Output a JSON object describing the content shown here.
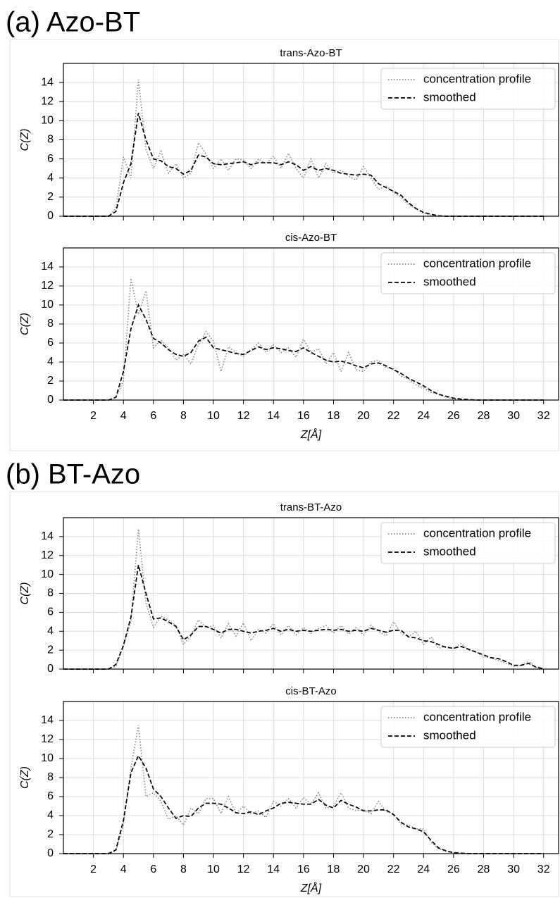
{
  "sections": [
    "(a) Azo-BT",
    "(b) BT-Azo"
  ],
  "chart_data": [
    {
      "type": "line",
      "title": "trans-Azo-BT",
      "ylabel": "C(Z)",
      "show_xtick_labels": false,
      "grid": true,
      "legend": "upper right",
      "xlim": [
        0,
        33
      ],
      "ylim": [
        0,
        16
      ],
      "xticks": [
        2,
        4,
        6,
        8,
        10,
        12,
        14,
        16,
        18,
        20,
        22,
        24,
        26,
        28,
        30,
        32
      ],
      "yticks": [
        0,
        2,
        4,
        6,
        8,
        10,
        12,
        14
      ],
      "x": [
        0,
        0.5,
        1,
        1.5,
        2,
        2.5,
        3,
        3.5,
        4,
        4.5,
        5,
        5.5,
        6,
        6.5,
        7,
        7.5,
        8,
        8.5,
        9,
        9.5,
        10,
        10.5,
        11,
        11.5,
        12,
        12.5,
        13,
        13.5,
        14,
        14.5,
        15,
        15.5,
        16,
        16.5,
        17,
        17.5,
        18,
        18.5,
        19,
        19.5,
        20,
        20.5,
        21,
        21.5,
        22,
        22.5,
        23,
        23.5,
        24,
        24.5,
        25,
        25.5,
        26,
        26.5,
        27,
        27.5,
        28,
        28.5,
        29,
        29.5,
        30,
        30.5,
        31,
        31.5,
        32
      ],
      "series": [
        {
          "name": "concentration profile",
          "color": "#888888",
          "dash": "dotted",
          "values": [
            0,
            0,
            0,
            0,
            0,
            0,
            0,
            0.8,
            6.2,
            4,
            14.3,
            7,
            5,
            6.8,
            4.5,
            5.5,
            4,
            4.5,
            7.7,
            6.5,
            5,
            6,
            4.8,
            6,
            5.9,
            5,
            6,
            5.5,
            6.3,
            5,
            6.6,
            5,
            4,
            6,
            4,
            5.5,
            4.5,
            4.8,
            4.2,
            3.8,
            5.2,
            4,
            2.8,
            3.2,
            2.5,
            2,
            1.2,
            0.8,
            0.3,
            0.1,
            0,
            0,
            0,
            0,
            0,
            0,
            0,
            0,
            0,
            0,
            0,
            0,
            0,
            0,
            0
          ]
        },
        {
          "name": "smoothed",
          "color": "#000000",
          "dash": "dashed",
          "values": [
            0,
            0,
            0,
            0,
            0,
            0,
            0,
            0.5,
            3.5,
            5.5,
            10.8,
            8,
            6,
            5.8,
            5.2,
            5,
            4.4,
            4.8,
            6.4,
            6.2,
            5.5,
            5.4,
            5.5,
            5.6,
            5.7,
            5.4,
            5.6,
            5.6,
            5.6,
            5.4,
            5.7,
            5.4,
            4.8,
            5.2,
            4.8,
            5,
            4.8,
            4.5,
            4.4,
            4.3,
            4.4,
            4.3,
            3.4,
            3,
            2.6,
            2.2,
            1.4,
            0.8,
            0.4,
            0.2,
            0.05,
            0,
            0,
            0,
            0,
            0,
            0,
            0,
            0,
            0,
            0,
            0,
            0,
            0,
            0
          ]
        }
      ]
    },
    {
      "type": "line",
      "title": "cis-Azo-BT",
      "xlabel": "Z[Å]",
      "ylabel": "C(Z)",
      "show_xtick_labels": true,
      "grid": true,
      "legend": "upper right",
      "xlim": [
        0,
        33
      ],
      "ylim": [
        0,
        16
      ],
      "xticks": [
        2,
        4,
        6,
        8,
        10,
        12,
        14,
        16,
        18,
        20,
        22,
        24,
        26,
        28,
        30,
        32
      ],
      "yticks": [
        0,
        2,
        4,
        6,
        8,
        10,
        12,
        14
      ],
      "x": [
        0,
        0.5,
        1,
        1.5,
        2,
        2.5,
        3,
        3.5,
        4,
        4.5,
        5,
        5.5,
        6,
        6.5,
        7,
        7.5,
        8,
        8.5,
        9,
        9.5,
        10,
        10.5,
        11,
        11.5,
        12,
        12.5,
        13,
        13.5,
        14,
        14.5,
        15,
        15.5,
        16,
        16.5,
        17,
        17.5,
        18,
        18.5,
        19,
        19.5,
        20,
        20.5,
        21,
        21.5,
        22,
        22.5,
        23,
        23.5,
        24,
        24.5,
        25,
        25.5,
        26,
        26.5,
        27,
        27.5,
        28,
        28.5,
        29,
        29.5,
        30,
        30.5,
        31,
        31.5,
        32
      ],
      "series": [
        {
          "name": "concentration profile",
          "color": "#888888",
          "dash": "dotted",
          "values": [
            0,
            0,
            0,
            0,
            0,
            0,
            0,
            0.3,
            2,
            12.8,
            9,
            11.5,
            5.5,
            6.3,
            5.5,
            4.2,
            4.8,
            3.8,
            5.8,
            7.2,
            6.2,
            3,
            5.6,
            5,
            4.6,
            5.3,
            6,
            5,
            5.8,
            5,
            5.5,
            4.5,
            6.4,
            5,
            5.4,
            3.8,
            5,
            3,
            5,
            3.2,
            3,
            4,
            4.2,
            3.4,
            3.3,
            2.5,
            2.2,
            1.6,
            1.3,
            0.8,
            0.6,
            0.3,
            0.1,
            0,
            0,
            0,
            0,
            0,
            0,
            0,
            0,
            0,
            0,
            0,
            0
          ]
        },
        {
          "name": "smoothed",
          "color": "#000000",
          "dash": "dashed",
          "values": [
            0,
            0,
            0,
            0,
            0,
            0,
            0,
            0.3,
            3,
            7.5,
            10,
            8.5,
            6.5,
            6,
            5.3,
            4.8,
            4.6,
            5,
            6.2,
            6.6,
            5.5,
            5.3,
            5.1,
            4.9,
            4.8,
            5.2,
            5.6,
            5.3,
            5.5,
            5.4,
            5.2,
            5.1,
            5.5,
            5,
            4.6,
            4.2,
            4,
            4.1,
            3.9,
            3.6,
            3.4,
            3.8,
            3.9,
            3.6,
            3.2,
            2.8,
            2.3,
            1.9,
            1.5,
            1,
            0.6,
            0.4,
            0.2,
            0.1,
            0.05,
            0,
            0,
            0,
            0,
            0,
            0,
            0,
            0,
            0,
            0
          ]
        }
      ]
    },
    {
      "type": "line",
      "title": "trans-BT-Azo",
      "ylabel": "C(Z)",
      "show_xtick_labels": false,
      "grid": true,
      "legend": "upper right",
      "xlim": [
        0,
        33
      ],
      "ylim": [
        0,
        16
      ],
      "xticks": [
        2,
        4,
        6,
        8,
        10,
        12,
        14,
        16,
        18,
        20,
        22,
        24,
        26,
        28,
        30,
        32
      ],
      "yticks": [
        0,
        2,
        4,
        6,
        8,
        10,
        12,
        14
      ],
      "x": [
        0,
        0.5,
        1,
        1.5,
        2,
        2.5,
        3,
        3.5,
        4,
        4.5,
        5,
        5.5,
        6,
        6.5,
        7,
        7.5,
        8,
        8.5,
        9,
        9.5,
        10,
        10.5,
        11,
        11.5,
        12,
        12.5,
        13,
        13.5,
        14,
        14.5,
        15,
        15.5,
        16,
        16.5,
        17,
        17.5,
        18,
        18.5,
        19,
        19.5,
        20,
        20.5,
        21,
        21.5,
        22,
        22.5,
        23,
        23.5,
        24,
        24.5,
        25,
        25.5,
        26,
        26.5,
        27,
        27.5,
        28,
        28.5,
        29,
        29.5,
        30,
        30.5,
        31,
        31.5,
        32
      ],
      "series": [
        {
          "name": "concentration profile",
          "color": "#888888",
          "dash": "dotted",
          "values": [
            0,
            0,
            0,
            0,
            0,
            0,
            0,
            0.3,
            2.4,
            5,
            14.8,
            7,
            4.4,
            5.6,
            5.2,
            4.6,
            2.6,
            3.5,
            5.2,
            4.4,
            4.6,
            3.3,
            4.8,
            3.5,
            4.9,
            3,
            4.2,
            3.8,
            4.8,
            3.6,
            4.6,
            3.6,
            4.4,
            3.8,
            4.3,
            4.6,
            3.8,
            4.6,
            3.7,
            4.4,
            3.6,
            4.6,
            4,
            3.5,
            5,
            3.8,
            3.4,
            4,
            2.6,
            3.4,
            2.2,
            2.4,
            2.2,
            2.7,
            2,
            1.8,
            1.3,
            1.2,
            0.9,
            0.6,
            0.3,
            0.4,
            0.8,
            0.2,
            0
          ]
        },
        {
          "name": "smoothed",
          "color": "#000000",
          "dash": "dashed",
          "values": [
            0,
            0,
            0,
            0,
            0,
            0,
            0,
            0.5,
            2.5,
            5.5,
            11,
            8,
            5.3,
            5.4,
            5,
            4.5,
            3.1,
            3.6,
            4.5,
            4.5,
            4.2,
            3.8,
            4.2,
            4.2,
            4,
            3.8,
            4,
            4.1,
            4.3,
            4,
            4.2,
            4,
            4.1,
            4,
            4.1,
            4.2,
            4.1,
            4.2,
            4,
            4.1,
            4,
            4.3,
            4.1,
            3.9,
            4.1,
            4.1,
            3.4,
            3.3,
            3,
            2.9,
            2.6,
            2.3,
            2.2,
            2.4,
            2.1,
            1.8,
            1.5,
            1.2,
            1.1,
            0.8,
            0.4,
            0.4,
            0.6,
            0.2,
            0.05
          ]
        }
      ]
    },
    {
      "type": "line",
      "title": "cis-BT-Azo",
      "xlabel": "Z[Å]",
      "ylabel": "C(Z)",
      "show_xtick_labels": true,
      "grid": true,
      "legend": "upper right",
      "xlim": [
        0,
        33
      ],
      "ylim": [
        0,
        16
      ],
      "xticks": [
        2,
        4,
        6,
        8,
        10,
        12,
        14,
        16,
        18,
        20,
        22,
        24,
        26,
        28,
        30,
        32
      ],
      "yticks": [
        0,
        2,
        4,
        6,
        8,
        10,
        12,
        14
      ],
      "x": [
        0,
        0.5,
        1,
        1.5,
        2,
        2.5,
        3,
        3.5,
        4,
        4.5,
        5,
        5.5,
        6,
        6.5,
        7,
        7.5,
        8,
        8.5,
        9,
        9.5,
        10,
        10.5,
        11,
        11.5,
        12,
        12.5,
        13,
        13.5,
        14,
        14.5,
        15,
        15.5,
        16,
        16.5,
        17,
        17.5,
        18,
        18.5,
        19,
        19.5,
        20,
        20.5,
        21,
        21.5,
        22,
        22.5,
        23,
        23.5,
        24,
        24.5,
        25,
        25.5,
        26,
        26.5,
        27,
        27.5,
        28,
        28.5,
        29,
        29.5,
        30,
        30.5,
        31,
        31.5,
        32
      ],
      "series": [
        {
          "name": "concentration profile",
          "color": "#888888",
          "dash": "dotted",
          "values": [
            0,
            0,
            0,
            0,
            0,
            0,
            0,
            0.3,
            3,
            9,
            13.5,
            6,
            6.4,
            5.5,
            3.6,
            4,
            3,
            4.8,
            4.2,
            5.8,
            5.8,
            4.2,
            6,
            4.2,
            5,
            4.2,
            4.5,
            3.8,
            5.5,
            5,
            5.8,
            4.8,
            5.9,
            5.2,
            6.4,
            4.8,
            5,
            6.4,
            4.8,
            4.5,
            4.6,
            4.2,
            5.5,
            4.4,
            4.2,
            3.1,
            3,
            2.6,
            2.6,
            1.2,
            0.5,
            0.2,
            0.1,
            0,
            0,
            0,
            0,
            0,
            0,
            0,
            0,
            0,
            0,
            0,
            0
          ]
        },
        {
          "name": "smoothed",
          "color": "#000000",
          "dash": "dashed",
          "values": [
            0,
            0,
            0,
            0,
            0,
            0,
            0,
            0.4,
            3.5,
            8.5,
            10.3,
            9,
            6.8,
            6,
            4.8,
            3.7,
            4,
            3.9,
            4.8,
            5.3,
            5.3,
            5.2,
            4.8,
            4.3,
            4.2,
            4.4,
            4.1,
            4.5,
            4.8,
            5.3,
            5.4,
            5.3,
            5.2,
            5.2,
            5.7,
            5.1,
            4.8,
            5.6,
            5.2,
            4.9,
            4.5,
            4.5,
            4.6,
            4.6,
            4.1,
            3.3,
            2.8,
            2.6,
            2.3,
            1.4,
            0.6,
            0.3,
            0.1,
            0.05,
            0,
            0,
            0,
            0,
            0,
            0,
            0,
            0,
            0,
            0,
            0
          ]
        }
      ]
    }
  ]
}
